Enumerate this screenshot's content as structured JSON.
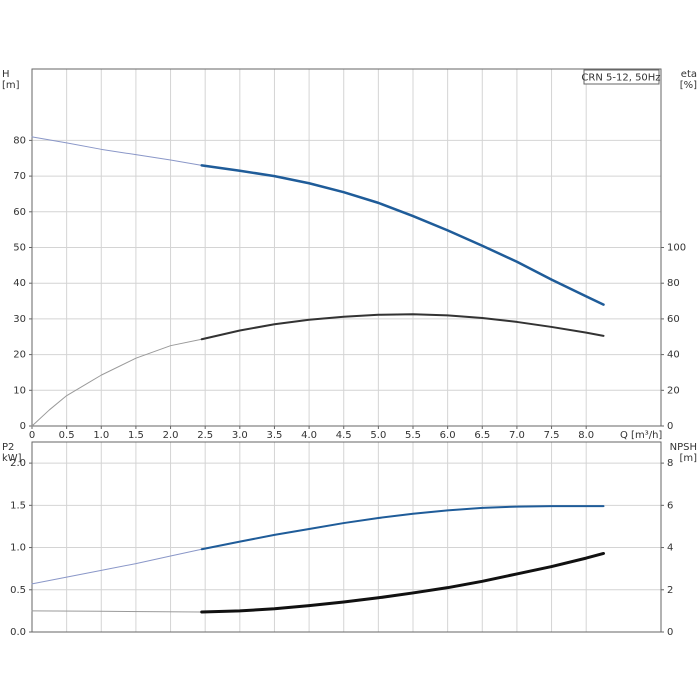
{
  "chart_data": [
    {
      "type": "line",
      "title": "CRN 5-12, 50Hz",
      "x_label": "Q [m³/h]",
      "y_label": [
        "H",
        "[m]"
      ],
      "y2_label": [
        "eta",
        "[%]"
      ],
      "xlim": [
        0,
        9.08
      ],
      "xticks": [
        0,
        0.5,
        {
          "value": 1,
          "label": "1.0"
        },
        1.5,
        {
          "value": 2,
          "label": "2.0"
        },
        2.5,
        {
          "value": 3,
          "label": "3.0"
        },
        3.5,
        {
          "value": 4,
          "label": "4.0"
        },
        4.5,
        {
          "value": 5,
          "label": "5.0"
        },
        5.5,
        {
          "value": 6,
          "label": "6.0"
        },
        6.5,
        {
          "value": 7,
          "label": "7.0"
        },
        7.5,
        {
          "value": 8,
          "label": "8.0"
        }
      ],
      "ylim": [
        0,
        100
      ],
      "yticks": [
        0,
        10,
        20,
        30,
        40,
        50,
        60,
        70,
        80
      ],
      "y2lim": [
        0,
        200
      ],
      "y2ticks": [
        0,
        20,
        40,
        60,
        80,
        100
      ],
      "grid": true,
      "series": [
        {
          "color": "#8a97c8",
          "line_width": 1,
          "x": [
            0,
            0.5,
            1,
            1.5,
            2,
            2.45
          ],
          "values": [
            81,
            79.3,
            77.5,
            76,
            74.5,
            73
          ]
        },
        {
          "color": "#1f5c99",
          "line_width": 2.5,
          "x": [
            2.45,
            3,
            3.5,
            4,
            4.5,
            5,
            5.5,
            6,
            6.5,
            7,
            7.5,
            8,
            8.25
          ],
          "values": [
            73,
            71.5,
            70,
            68,
            65.5,
            62.5,
            58.8,
            54.8,
            50.5,
            46,
            41,
            36.3,
            34
          ]
        },
        {
          "color": "#9a9a9a",
          "line_width": 1,
          "axis": "y2",
          "x": [
            0,
            0.25,
            0.5,
            1,
            1.5,
            2,
            2.45
          ],
          "values": [
            0,
            9,
            17,
            28.5,
            38,
            45,
            48.6
          ]
        },
        {
          "color": "#333333",
          "line_width": 2,
          "axis": "y2",
          "x": [
            2.45,
            3,
            3.5,
            4,
            4.5,
            5,
            5.5,
            6,
            6.5,
            7,
            7.5,
            8,
            8.25
          ],
          "values": [
            48.6,
            53.5,
            57,
            59.5,
            61.2,
            62.3,
            62.6,
            62,
            60.5,
            58.3,
            55.5,
            52.3,
            50.5
          ]
        }
      ]
    },
    {
      "type": "line",
      "y_label": [
        "P2",
        "kW]"
      ],
      "y2_label": [
        "NPSH",
        "[m]"
      ],
      "xlim": [
        0,
        9.08
      ],
      "xticks": [
        0,
        0.5,
        1,
        1.5,
        2,
        2.5,
        3,
        3.5,
        4,
        4.5,
        5,
        5.5,
        6,
        6.5,
        7,
        7.5,
        8
      ],
      "ylim": [
        0,
        2.25
      ],
      "yticks": [
        {
          "value": 0,
          "label": "0.0"
        },
        0.5,
        {
          "value": 1,
          "label": "1.0"
        },
        1.5,
        {
          "value": 2,
          "label": "2.0"
        }
      ],
      "y2lim": [
        0,
        9
      ],
      "y2ticks": [
        0,
        2,
        4,
        6,
        8
      ],
      "grid": true,
      "series": [
        {
          "color": "#8a97c8",
          "line_width": 1,
          "x": [
            0,
            0.5,
            1,
            1.5,
            2,
            2.45
          ],
          "values": [
            0.57,
            0.65,
            0.73,
            0.81,
            0.9,
            0.98
          ]
        },
        {
          "color": "#1f5c99",
          "line_width": 2,
          "x": [
            2.45,
            3,
            3.5,
            4,
            4.5,
            5,
            5.5,
            6,
            6.5,
            7,
            7.5,
            8,
            8.25
          ],
          "values": [
            0.98,
            1.07,
            1.15,
            1.22,
            1.29,
            1.35,
            1.4,
            1.44,
            1.47,
            1.485,
            1.49,
            1.49,
            1.49
          ]
        },
        {
          "color": "#9a9a9a",
          "line_width": 1,
          "axis": "y2",
          "x": [
            0,
            1,
            2.45
          ],
          "values": [
            1.0,
            0.98,
            0.95
          ]
        },
        {
          "color": "#111111",
          "line_width": 3,
          "axis": "y2",
          "x": [
            2.45,
            3,
            3.5,
            4,
            4.5,
            5,
            5.5,
            6,
            6.5,
            7,
            7.5,
            8,
            8.25
          ],
          "values": [
            0.95,
            1.0,
            1.1,
            1.25,
            1.42,
            1.62,
            1.85,
            2.1,
            2.4,
            2.75,
            3.1,
            3.5,
            3.72
          ]
        }
      ]
    }
  ]
}
